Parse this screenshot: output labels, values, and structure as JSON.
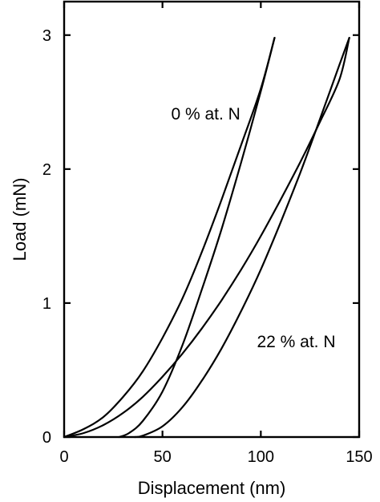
{
  "chart_data": {
    "type": "line",
    "title": "",
    "xlabel": "Displacement (nm)",
    "ylabel": "Load (mN)",
    "xlim": [
      0,
      150
    ],
    "ylim": [
      0,
      3.25
    ],
    "xticks": [
      0,
      50,
      100,
      150
    ],
    "yticks": [
      0,
      1,
      2,
      3
    ],
    "grid": false,
    "legend": "none",
    "series": [
      {
        "name": "0 % at. N",
        "loading": {
          "x": [
            0,
            10,
            20,
            30,
            40,
            50,
            60,
            70,
            80,
            90,
            100,
            107
          ],
          "y": [
            0,
            0.06,
            0.15,
            0.3,
            0.49,
            0.74,
            1.03,
            1.38,
            1.77,
            2.18,
            2.6,
            2.98
          ]
        },
        "unloading": {
          "x": [
            107,
            100,
            90,
            80,
            70,
            60,
            50,
            40,
            33,
            28
          ],
          "y": [
            2.98,
            2.58,
            2.05,
            1.55,
            1.1,
            0.68,
            0.34,
            0.12,
            0.03,
            0
          ]
        }
      },
      {
        "name": "22 % at. N",
        "loading": {
          "x": [
            0,
            10,
            20,
            30,
            40,
            50,
            60,
            70,
            80,
            90,
            100,
            110,
            120,
            130,
            140,
            145
          ],
          "y": [
            0,
            0.03,
            0.09,
            0.18,
            0.3,
            0.45,
            0.62,
            0.81,
            1.02,
            1.25,
            1.5,
            1.77,
            2.05,
            2.35,
            2.67,
            2.98
          ]
        },
        "unloading": {
          "x": [
            145,
            140,
            130,
            120,
            110,
            100,
            90,
            80,
            70,
            60,
            50,
            40,
            36
          ],
          "y": [
            2.98,
            2.78,
            2.37,
            1.97,
            1.6,
            1.25,
            0.94,
            0.66,
            0.42,
            0.22,
            0.08,
            0.01,
            0
          ]
        }
      }
    ],
    "annotations": [
      {
        "text": "0 % at. N",
        "x": 72,
        "y": 2.37
      },
      {
        "text": "22 % at. N",
        "x": 118,
        "y": 0.67
      }
    ]
  }
}
